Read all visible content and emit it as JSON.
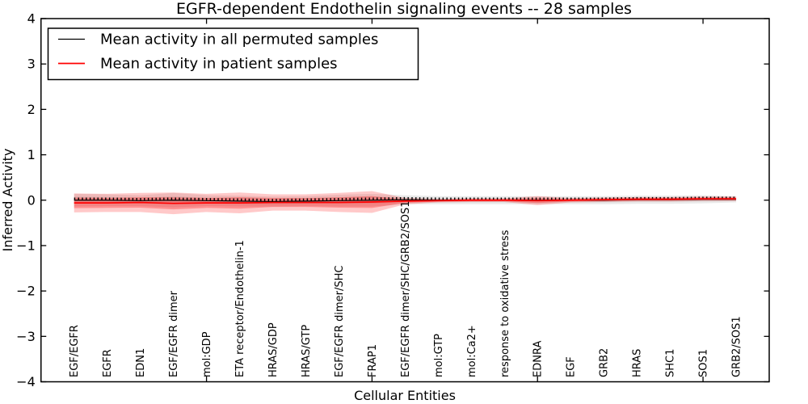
{
  "chart_data": {
    "type": "line",
    "title": "EGFR-dependent Endothelin signaling events -- 28 samples",
    "xlabel": "Cellular Entities",
    "ylabel": "Inferred Activity",
    "xlim": [
      0,
      22
    ],
    "ylim": [
      -4,
      4
    ],
    "yticks": [
      -4,
      -3,
      -2,
      -1,
      0,
      1,
      2,
      3,
      4
    ],
    "xticks": [
      5,
      10,
      15,
      20
    ],
    "grid": false,
    "legend_position": "upper left",
    "categories": [
      "EGF/EGFR",
      "EGFR",
      "EDN1",
      "EGF/EGFR dimer",
      "mol:GDP",
      "ETA receptor/Endothelin-1",
      "HRAS/GDP",
      "HRAS/GTP",
      "EGF/EGFR dimer/SHC",
      "FRAP1",
      "EGF/EGFR dimer/SHC/GRB2/SOS1",
      "mol:GTP",
      "mol:Ca2+",
      "response to oxidative stress",
      "EDNRA",
      "EGF",
      "GRB2",
      "HRAS",
      "SHC1",
      "SOS1",
      "GRB2/SOS1"
    ],
    "x": [
      1,
      2,
      3,
      4,
      5,
      6,
      7,
      8,
      9,
      10,
      11,
      12,
      13,
      14,
      15,
      16,
      17,
      18,
      19,
      20,
      21
    ],
    "series": [
      {
        "name": "Mean activity in all permuted samples",
        "color": "#000000",
        "band_color": "rgba(90,90,90,0.13)",
        "values": [
          0.0,
          0.0,
          -0.01,
          0.0,
          -0.01,
          -0.02,
          -0.03,
          -0.02,
          -0.01,
          0.0,
          0.01,
          0.0,
          0.0,
          0.0,
          0.0,
          0.0,
          0.0,
          0.01,
          0.01,
          0.02,
          0.02
        ],
        "std": [
          0.14,
          0.13,
          0.12,
          0.16,
          0.12,
          0.12,
          0.11,
          0.11,
          0.13,
          0.14,
          0.1,
          0.09,
          0.09,
          0.09,
          0.09,
          0.09,
          0.09,
          0.09,
          0.09,
          0.09,
          0.07
        ]
      },
      {
        "name": "Mean activity in patient samples",
        "color": "#ff0000",
        "band_color": "rgba(255,0,0,0.21)",
        "band_inner_color": "rgba(255,0,0,0.28)",
        "values": [
          -0.06,
          -0.06,
          -0.05,
          -0.07,
          -0.06,
          -0.06,
          -0.05,
          -0.05,
          -0.05,
          -0.04,
          -0.02,
          -0.01,
          0.0,
          0.0,
          -0.01,
          0.0,
          0.01,
          0.02,
          0.02,
          0.03,
          0.03
        ],
        "std": [
          0.21,
          0.2,
          0.21,
          0.24,
          0.2,
          0.23,
          0.18,
          0.18,
          0.21,
          0.24,
          0.07,
          0.04,
          0.04,
          0.04,
          0.1,
          0.05,
          0.05,
          0.05,
          0.05,
          0.05,
          0.05
        ]
      }
    ]
  },
  "colors": {
    "frame": "#000000",
    "background": "#ffffff",
    "permuted_line": "#000000",
    "patient_line": "#ff0000"
  }
}
